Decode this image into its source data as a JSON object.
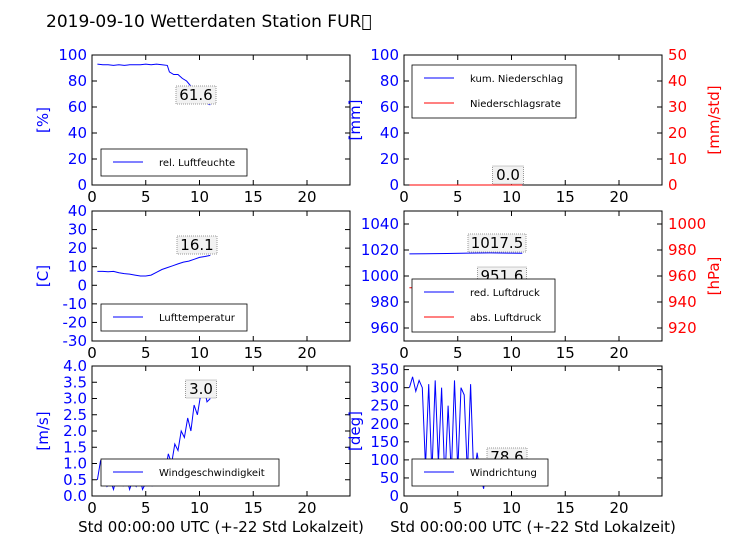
{
  "title": "2019-09-10 Wetterdaten Station FUR\u0000",
  "xlabel": "Std 00:00:00 UTC (+-22 Std Lokalzeit)",
  "colors": {
    "left_axis": "#0000ff",
    "right_axis": "#ff0000"
  },
  "chart_data": [
    {
      "type": "line",
      "ylabel": "[%]",
      "xlim": [
        0,
        24
      ],
      "ylim": [
        0,
        100
      ],
      "xticks": [
        0,
        5,
        10,
        15,
        20
      ],
      "yticks": [
        0,
        20,
        40,
        60,
        80,
        100
      ],
      "legend": [
        "rel. Luftfeuchte"
      ],
      "legend_position": "lower-left",
      "annotation": "61.6",
      "series": [
        {
          "name": "rel. Luftfeuchte",
          "color": "#0000ff",
          "x": [
            0.5,
            1.0,
            1.5,
            2.0,
            2.5,
            3.0,
            3.5,
            4.0,
            4.5,
            5.0,
            5.5,
            6.0,
            6.5,
            7.0,
            7.2,
            7.6,
            8.0,
            8.4,
            8.8,
            9.2,
            9.5,
            9.8,
            10.1,
            10.4,
            10.7,
            11.0
          ],
          "y": [
            93,
            92.5,
            92.5,
            92,
            92.5,
            92,
            92.5,
            92.5,
            92.5,
            93,
            92.5,
            93,
            92.5,
            92,
            87,
            85,
            85,
            82,
            80,
            76,
            73,
            70,
            68,
            66,
            63,
            61.6
          ]
        }
      ]
    },
    {
      "type": "line",
      "ylabel": "[mm]",
      "ylabel_right": "[mm/std]",
      "xlim": [
        0,
        24
      ],
      "ylim": [
        0,
        100
      ],
      "ylim_right": [
        0,
        50
      ],
      "xticks": [
        0,
        5,
        10,
        15,
        20
      ],
      "yticks": [
        0,
        20,
        40,
        60,
        80,
        100
      ],
      "yticks_right": [
        0,
        10,
        20,
        30,
        40,
        50
      ],
      "legend": [
        "kum. Niederschlag",
        "Niederschlagsrate"
      ],
      "legend_position": "top-left",
      "annotation": "0.0",
      "series": [
        {
          "name": "kum. Niederschlag",
          "color": "#0000ff",
          "axis": "left",
          "x": [
            0.5,
            11.0
          ],
          "y": [
            0,
            0
          ]
        },
        {
          "name": "Niederschlagsrate",
          "color": "#ff0000",
          "axis": "right",
          "x": [
            0.5,
            11.0
          ],
          "y": [
            0,
            0
          ]
        }
      ]
    },
    {
      "type": "line",
      "ylabel": "[C]",
      "xlim": [
        0,
        24
      ],
      "ylim": [
        -30,
        40
      ],
      "xticks": [
        0,
        5,
        10,
        15,
        20
      ],
      "yticks": [
        -30,
        -20,
        -10,
        0,
        10,
        20,
        30,
        40
      ],
      "legend": [
        "Lufttemperatur"
      ],
      "legend_position": "lower-left",
      "annotation": "16.1",
      "series": [
        {
          "name": "Lufttemperatur",
          "color": "#0000ff",
          "x": [
            0.5,
            1.0,
            1.5,
            2.0,
            2.5,
            3.0,
            3.5,
            4.0,
            4.5,
            5.0,
            5.5,
            6.0,
            6.5,
            7.0,
            7.5,
            8.0,
            8.5,
            9.0,
            9.5,
            10.0,
            10.5,
            11.0
          ],
          "y": [
            7.5,
            7.5,
            7.3,
            7.5,
            6.8,
            6.3,
            6.0,
            5.5,
            5.0,
            5.0,
            5.5,
            7.0,
            8.5,
            9.5,
            10.5,
            11.5,
            12.5,
            13.0,
            14.0,
            15.0,
            15.5,
            16.1
          ]
        }
      ]
    },
    {
      "type": "line",
      "ylabel_right": "[hPa]",
      "xlim": [
        0,
        24
      ],
      "ylim": [
        950,
        1050
      ],
      "ylim_right": [
        910,
        1010
      ],
      "xticks": [
        0,
        5,
        10,
        15,
        20
      ],
      "yticks": [
        960,
        980,
        1000,
        1020,
        1040
      ],
      "yticks_right": [
        920,
        940,
        960,
        980,
        1000
      ],
      "legend": [
        "red. Luftdruck",
        "abs. Luftdruck"
      ],
      "legend_position": "lower-left",
      "annotations": [
        "1017.5",
        "951.6"
      ],
      "series": [
        {
          "name": "red. Luftdruck",
          "color": "#0000ff",
          "axis": "left",
          "x": [
            0.5,
            2.0,
            4.0,
            6.0,
            8.0,
            10.0,
            11.0
          ],
          "y": [
            1017.0,
            1017.1,
            1017.3,
            1017.6,
            1017.8,
            1017.6,
            1017.5
          ]
        },
        {
          "name": "abs. Luftdruck",
          "color": "#ff0000",
          "axis": "right",
          "x": [
            0.5,
            2.0,
            4.0,
            6.0,
            8.0,
            10.0,
            11.0
          ],
          "y": [
            950.9,
            951.0,
            951.2,
            951.5,
            951.8,
            951.7,
            951.6
          ]
        }
      ]
    },
    {
      "type": "line",
      "ylabel": "[m/s]",
      "xlabel": "Std 00:00:00 UTC (+-22 Std Lokalzeit)",
      "xlim": [
        0,
        24
      ],
      "ylim": [
        0,
        4
      ],
      "xticks": [
        0,
        5,
        10,
        15,
        20
      ],
      "yticks": [
        0.0,
        0.5,
        1.0,
        1.5,
        2.0,
        2.5,
        3.0,
        3.5,
        4.0
      ],
      "legend": [
        "Windgeschwindigkeit"
      ],
      "legend_position": "lower-left",
      "annotation": "3.0",
      "series": [
        {
          "name": "Windgeschwindigkeit",
          "color": "#0000ff",
          "x": [
            0.5,
            0.8,
            1.1,
            1.4,
            1.7,
            2.0,
            2.3,
            2.6,
            2.9,
            3.2,
            3.5,
            3.8,
            4.1,
            4.4,
            4.7,
            5.0,
            5.3,
            5.6,
            5.9,
            6.2,
            6.5,
            6.8,
            7.1,
            7.4,
            7.7,
            8.0,
            8.3,
            8.6,
            8.9,
            9.2,
            9.5,
            9.8,
            10.1,
            10.4,
            10.7,
            11.0
          ],
          "y": [
            0.5,
            1.1,
            0.6,
            0.3,
            0.5,
            0.2,
            0.6,
            0.9,
            0.3,
            0.6,
            0.2,
            0.5,
            0.3,
            0.7,
            0.2,
            0.4,
            0.6,
            0.3,
            0.9,
            0.4,
            1.0,
            0.7,
            1.3,
            1.0,
            1.6,
            1.4,
            2.0,
            1.8,
            2.4,
            2.0,
            2.8,
            2.5,
            3.1,
            3.4,
            2.9,
            3.0
          ]
        }
      ]
    },
    {
      "type": "line",
      "ylabel": "[deg]",
      "xlabel": "Std 00:00:00 UTC (+-22 Std Lokalzeit)",
      "xlim": [
        0,
        24
      ],
      "ylim": [
        0,
        360
      ],
      "xticks": [
        0,
        5,
        10,
        15,
        20
      ],
      "yticks": [
        0,
        50,
        100,
        150,
        200,
        250,
        300,
        350
      ],
      "legend": [
        "Windrichtung"
      ],
      "legend_position": "lower-left",
      "annotation": "78.6",
      "series": [
        {
          "name": "Windrichtung",
          "color": "#0000ff",
          "x": [
            0.5,
            0.8,
            1.1,
            1.4,
            1.7,
            2.0,
            2.3,
            2.6,
            2.9,
            3.2,
            3.5,
            3.8,
            4.1,
            4.4,
            4.7,
            5.0,
            5.3,
            5.6,
            5.9,
            6.2,
            6.5,
            6.8,
            7.1,
            7.4,
            7.7,
            8.0,
            8.3,
            8.6,
            8.9,
            9.2,
            9.5,
            9.8,
            10.1,
            10.4,
            10.7,
            11.0
          ],
          "y": [
            300,
            330,
            290,
            320,
            300,
            80,
            310,
            60,
            320,
            90,
            300,
            40,
            250,
            60,
            320,
            70,
            300,
            280,
            60,
            310,
            40,
            120,
            60,
            20,
            90,
            60,
            80,
            50,
            100,
            70,
            90,
            60,
            95,
            70,
            85,
            78.6
          ]
        }
      ]
    }
  ]
}
